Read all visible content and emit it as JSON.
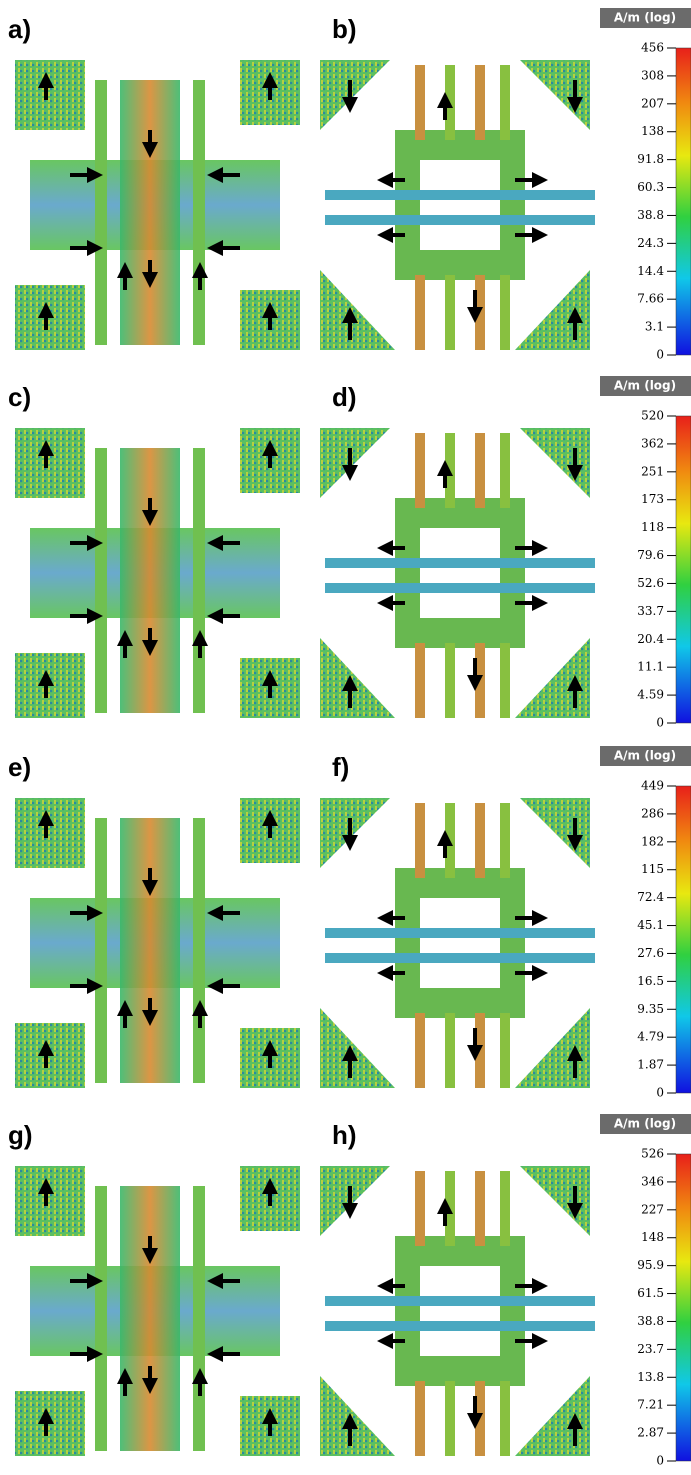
{
  "panels": [
    {
      "label": "a)"
    },
    {
      "label": "b)"
    },
    {
      "label": "c)"
    },
    {
      "label": "d)"
    },
    {
      "label": "e)"
    },
    {
      "label": "f)"
    },
    {
      "label": "g)"
    },
    {
      "label": "h)"
    }
  ],
  "colorbars": [
    {
      "title": "A/m (log)",
      "ticks": [
        "456",
        "308",
        "207",
        "138",
        "91.8",
        "60.3",
        "38.8",
        "24.3",
        "14.4",
        "7.66",
        "3.1",
        "0"
      ]
    },
    {
      "title": "A/m (log)",
      "ticks": [
        "520",
        "362",
        "251",
        "173",
        "118",
        "79.6",
        "52.6",
        "33.7",
        "20.4",
        "11.1",
        "4.59",
        "0"
      ]
    },
    {
      "title": "A/m (log)",
      "ticks": [
        "449",
        "286",
        "182",
        "115",
        "72.4",
        "45.1",
        "27.6",
        "16.5",
        "9.35",
        "4.79",
        "1.87",
        "0"
      ]
    },
    {
      "title": "A/m (log)",
      "ticks": [
        "526",
        "346",
        "227",
        "148",
        "95.9",
        "61.5",
        "38.8",
        "23.7",
        "13.8",
        "7.21",
        "2.87",
        "0"
      ]
    }
  ]
}
